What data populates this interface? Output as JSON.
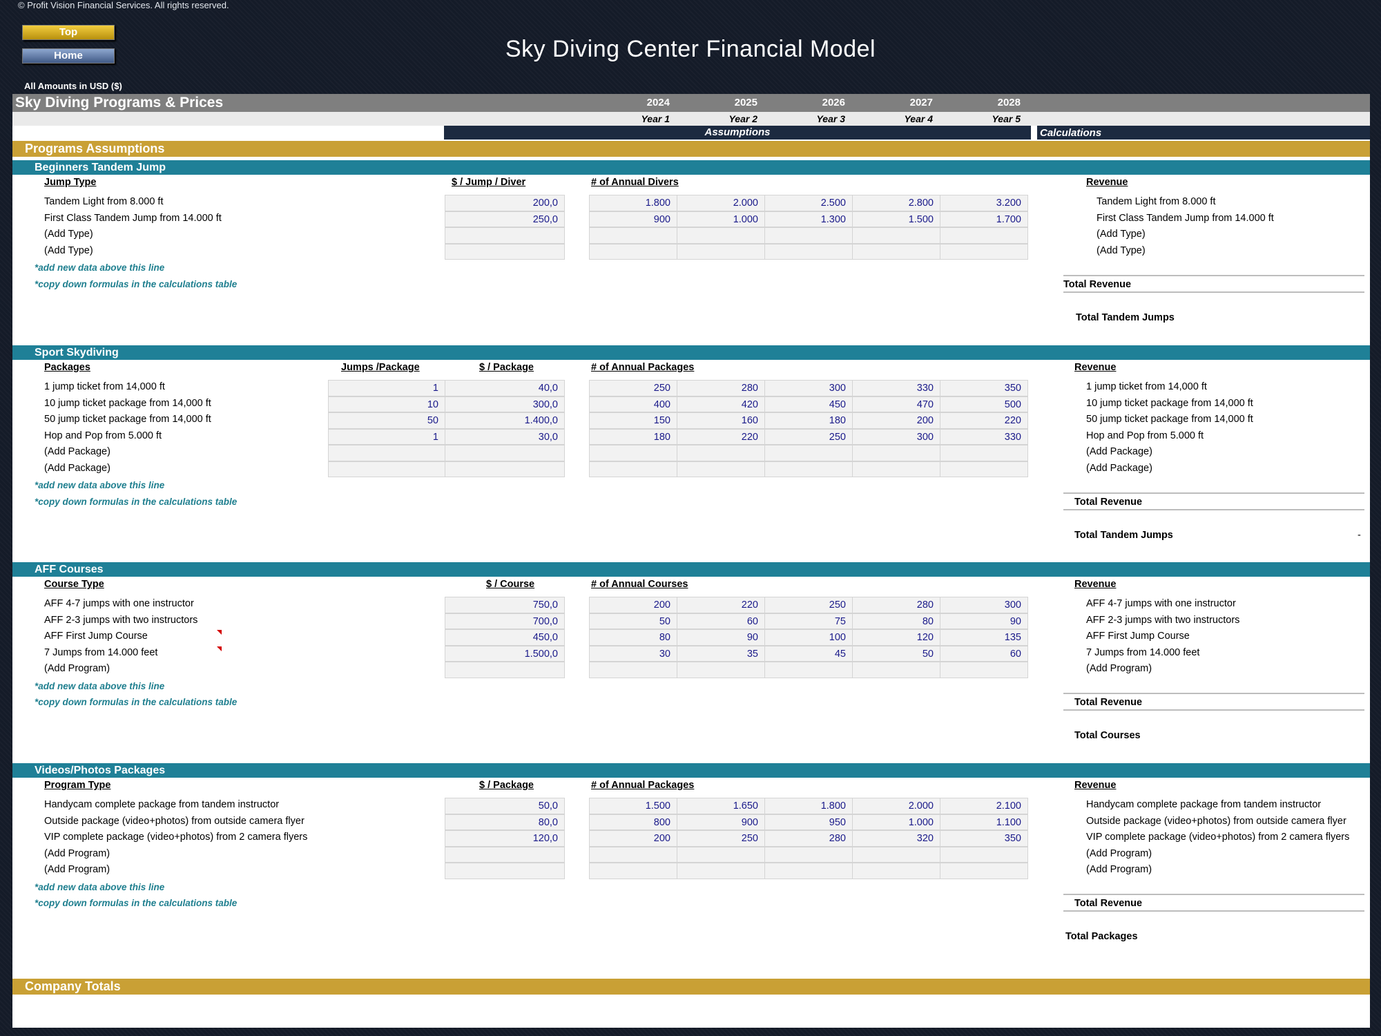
{
  "copyright": "© Profit Vision Financial Services. All rights reserved.",
  "nav": {
    "top_label": "Top",
    "home_label": "Home"
  },
  "title": "Sky Diving Center Financial Model",
  "currency_label": "All Amounts in  USD ($)",
  "sheet": {
    "title": "Sky Diving Programs & Prices",
    "years": [
      "2024",
      "2025",
      "2026",
      "2027",
      "2028"
    ],
    "year_labels": [
      "Year 1",
      "Year 2",
      "Year 3",
      "Year 4",
      "Year 5"
    ],
    "assumptions_label": "Assumptions",
    "calculations_label": "Calculations",
    "programs_assumptions_label": "Programs Assumptions",
    "company_totals_label": "Company Totals",
    "note_add": "*add new data above this line",
    "note_copy": "*copy down formulas in the calculations table",
    "revenue_header": "Revenue",
    "total_revenue_label": "Total Revenue"
  },
  "sections": {
    "tandem": {
      "title": "Beginners Tandem Jump",
      "col_type": "Jump Type",
      "col_price": "$ / Jump / Diver",
      "col_count": "# of Annual Divers",
      "total_count_label": "Total Tandem Jumps",
      "rows": [
        {
          "name": "Tandem Light from 8.000 ft",
          "price": "200,0",
          "counts": [
            "1.800",
            "2.000",
            "2.500",
            "2.800",
            "3.200"
          ]
        },
        {
          "name": "First Class Tandem Jump from 14.000 ft",
          "price": "250,0",
          "counts": [
            "900",
            "1.000",
            "1.300",
            "1.500",
            "1.700"
          ]
        },
        {
          "name": "(Add Type)",
          "price": "",
          "counts": [
            "",
            "",
            "",
            "",
            ""
          ]
        },
        {
          "name": "(Add Type)",
          "price": "",
          "counts": [
            "",
            "",
            "",
            "",
            ""
          ]
        }
      ]
    },
    "sport": {
      "title": "Sport Skydiving",
      "col_type": "Packages",
      "col_jumps": "Jumps /Package",
      "col_price": "$ / Package",
      "col_count": "# of Annual Packages",
      "total_count_label": "Total Tandem Jumps",
      "total_count_value": "-",
      "rows": [
        {
          "name": "1 jump ticket from 14,000 ft",
          "jumps": "1",
          "price": "40,0",
          "counts": [
            "250",
            "280",
            "300",
            "330",
            "350"
          ]
        },
        {
          "name": "10 jump ticket package from 14,000 ft",
          "jumps": "10",
          "price": "300,0",
          "counts": [
            "400",
            "420",
            "450",
            "470",
            "500"
          ]
        },
        {
          "name": "50 jump ticket package from 14,000 ft",
          "jumps": "50",
          "price": "1.400,0",
          "counts": [
            "150",
            "160",
            "180",
            "200",
            "220"
          ]
        },
        {
          "name": "Hop and Pop from 5.000 ft",
          "jumps": "1",
          "price": "30,0",
          "counts": [
            "180",
            "220",
            "250",
            "300",
            "330"
          ]
        },
        {
          "name": "(Add Package)",
          "jumps": "",
          "price": "",
          "counts": [
            "",
            "",
            "",
            "",
            ""
          ]
        },
        {
          "name": "(Add Package)",
          "jumps": "",
          "price": "",
          "counts": [
            "",
            "",
            "",
            "",
            ""
          ]
        }
      ]
    },
    "aff": {
      "title": "AFF Courses",
      "col_type": "Course Type",
      "col_price": "$ / Course",
      "col_count": "# of Annual Courses",
      "total_count_label": "Total Courses",
      "rows": [
        {
          "name": "AFF 4-7 jumps with one instructor",
          "price": "750,0",
          "counts": [
            "200",
            "220",
            "250",
            "280",
            "300"
          ]
        },
        {
          "name": "AFF 2-3 jumps with two instructors",
          "price": "700,0",
          "counts": [
            "50",
            "60",
            "75",
            "80",
            "90"
          ]
        },
        {
          "name": "AFF First Jump Course",
          "price": "450,0",
          "counts": [
            "80",
            "90",
            "100",
            "120",
            "135"
          ]
        },
        {
          "name": "7 Jumps from 14.000 feet",
          "price": "1.500,0",
          "counts": [
            "30",
            "35",
            "45",
            "50",
            "60"
          ]
        },
        {
          "name": "(Add Program)",
          "price": "",
          "counts": [
            "",
            "",
            "",
            "",
            ""
          ]
        }
      ]
    },
    "video": {
      "title": "Videos/Photos Packages",
      "col_type": "Program Type",
      "col_price": "$ / Package",
      "col_count": "# of Annual Packages",
      "total_count_label": "Total Packages",
      "rows": [
        {
          "name": "Handycam complete package from tandem instructor",
          "price": "50,0",
          "counts": [
            "1.500",
            "1.650",
            "1.800",
            "2.000",
            "2.100"
          ]
        },
        {
          "name": "Outside package (video+photos) from outside camera flyer",
          "price": "80,0",
          "counts": [
            "800",
            "900",
            "950",
            "1.000",
            "1.100"
          ]
        },
        {
          "name": "VIP complete package (video+photos) from 2 camera flyers",
          "price": "120,0",
          "counts": [
            "200",
            "250",
            "280",
            "320",
            "350"
          ]
        },
        {
          "name": "(Add Program)",
          "price": "",
          "counts": [
            "",
            "",
            "",
            "",
            ""
          ]
        },
        {
          "name": "(Add Program)",
          "price": "",
          "counts": [
            "",
            "",
            "",
            "",
            ""
          ]
        }
      ]
    }
  }
}
